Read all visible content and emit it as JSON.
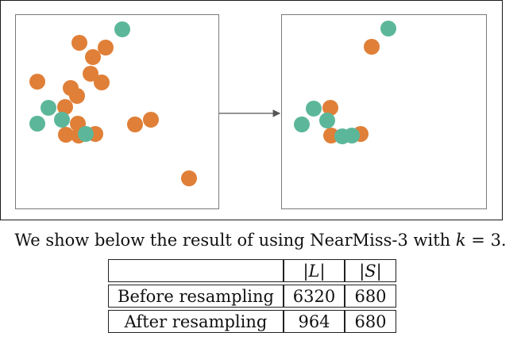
{
  "colors": {
    "majority": "#e07f37",
    "minority": "#5cb79a",
    "frame": "#1a1a1a",
    "panel_border": "#7a7a7a"
  },
  "panels": {
    "before": {
      "majority_points": [
        [
          80,
          35
        ],
        [
          113,
          41
        ],
        [
          97,
          53
        ],
        [
          27,
          84
        ],
        [
          94,
          74
        ],
        [
          108,
          85
        ],
        [
          69,
          92
        ],
        [
          77,
          102
        ],
        [
          62,
          116
        ],
        [
          78,
          137
        ],
        [
          150,
          138
        ],
        [
          170,
          132
        ],
        [
          63,
          151
        ],
        [
          79,
          152
        ],
        [
          100,
          150
        ],
        [
          218,
          206
        ]
      ],
      "minority_points": [
        [
          134,
          18
        ],
        [
          41,
          117
        ],
        [
          27,
          137
        ],
        [
          58,
          132
        ],
        [
          88,
          150
        ]
      ]
    },
    "after": {
      "majority_points": [
        [
          113,
          40
        ],
        [
          61,
          117
        ],
        [
          62,
          152
        ],
        [
          99,
          150
        ]
      ],
      "minority_points": [
        [
          134,
          17
        ],
        [
          40,
          118
        ],
        [
          25,
          138
        ],
        [
          57,
          133
        ],
        [
          88,
          152
        ],
        [
          76,
          153
        ]
      ]
    }
  },
  "caption": {
    "prefix": "We show below the result of using NearMiss-3 with",
    "math": "k",
    "suffix": "= 3."
  },
  "table": {
    "headers": [
      "",
      "|L|",
      "|S|"
    ],
    "rows": [
      [
        "Before resampling",
        "6320",
        "680"
      ],
      [
        "After resampling",
        "964",
        "680"
      ]
    ]
  }
}
